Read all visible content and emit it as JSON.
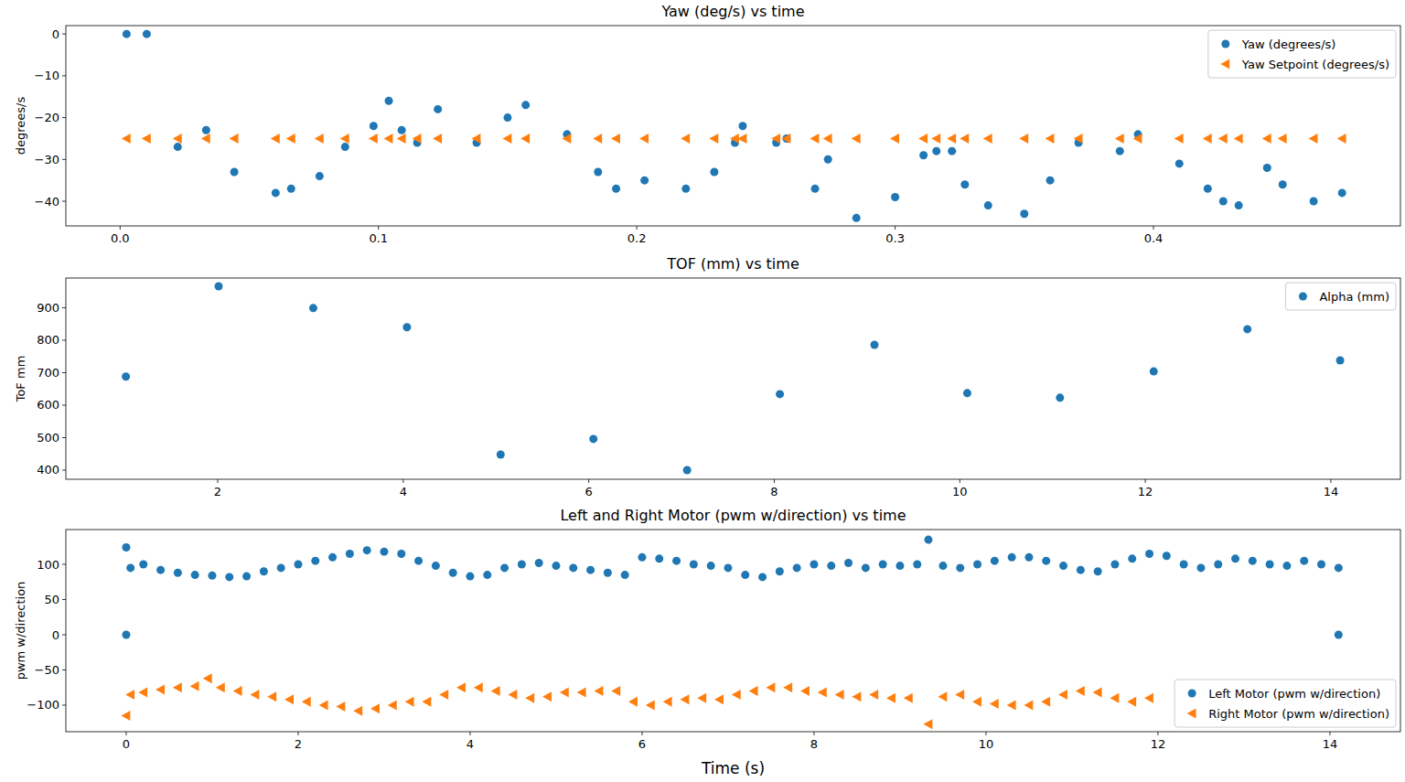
{
  "chart_data": [
    {
      "type": "scatter",
      "title": "Yaw (deg/s) vs time",
      "ylabel": "degrees/s",
      "xlim": [
        -0.021,
        0.4956
      ],
      "ylim": [
        -45.9,
        2.0
      ],
      "xticks": [
        {
          "value": 0,
          "label": "0.0"
        },
        0.1,
        0.2,
        0.3,
        0.4
      ],
      "yticks": [
        0,
        {
          "value": -10,
          "label": "−10"
        },
        {
          "value": -20,
          "label": "−20"
        },
        {
          "value": -30,
          "label": "−30"
        },
        {
          "value": -40,
          "label": "−40"
        }
      ],
      "grid": false,
      "legend": "upper right",
      "series": [
        {
          "name": "Yaw (degrees/s)",
          "color": "#1f77b4",
          "marker": "circle",
          "x": [
            0.0025,
            0.0103,
            0.0223,
            0.0333,
            0.0442,
            0.0602,
            0.0662,
            0.0772,
            0.0871,
            0.0981,
            0.104,
            0.109,
            0.115,
            0.123,
            0.138,
            0.15,
            0.157,
            0.173,
            0.185,
            0.192,
            0.203,
            0.219,
            0.23,
            0.238,
            0.241,
            0.254,
            0.258,
            0.269,
            0.274,
            0.285,
            0.3,
            0.311,
            0.316,
            0.322,
            0.327,
            0.336,
            0.35,
            0.36,
            0.371,
            0.387,
            0.394,
            0.41,
            0.421,
            0.427,
            0.433,
            0.444,
            0.45,
            0.462,
            0.473
          ],
          "values": [
            0,
            0,
            -27,
            -23,
            -33,
            -38,
            -37,
            -34,
            -27,
            -22,
            -16,
            -23,
            -26,
            -18,
            -26,
            -20,
            -17,
            -24,
            -33,
            -37,
            -35,
            -37,
            -33,
            -26,
            -22,
            -26,
            -25,
            -37,
            -30,
            -44,
            -39,
            -29,
            -28,
            -28,
            -36,
            -41,
            -43,
            -35,
            -26,
            -28,
            -24,
            -31,
            -37,
            -40,
            -41,
            -32,
            -36,
            -40,
            -38
          ]
        },
        {
          "name": "Yaw Setpoint (degrees/s)",
          "color": "#ff7f0e",
          "marker": "triangle-left",
          "x": [
            0.0025,
            0.0103,
            0.0223,
            0.0333,
            0.0442,
            0.0602,
            0.0662,
            0.0772,
            0.0871,
            0.0981,
            0.104,
            0.109,
            0.115,
            0.123,
            0.138,
            0.15,
            0.157,
            0.173,
            0.185,
            0.192,
            0.203,
            0.219,
            0.23,
            0.238,
            0.241,
            0.254,
            0.258,
            0.269,
            0.274,
            0.285,
            0.3,
            0.311,
            0.316,
            0.322,
            0.327,
            0.336,
            0.35,
            0.36,
            0.371,
            0.387,
            0.394,
            0.41,
            0.421,
            0.427,
            0.433,
            0.444,
            0.45,
            0.462,
            0.473
          ],
          "values": [
            -25,
            -25,
            -25,
            -25,
            -25,
            -25,
            -25,
            -25,
            -25,
            -25,
            -25,
            -25,
            -25,
            -25,
            -25,
            -25,
            -25,
            -25,
            -25,
            -25,
            -25,
            -25,
            -25,
            -25,
            -25,
            -25,
            -25,
            -25,
            -25,
            -25,
            -25,
            -25,
            -25,
            -25,
            -25,
            -25,
            -25,
            -25,
            -25,
            -25,
            -25,
            -25,
            -25,
            -25,
            -25,
            -25,
            -25,
            -25,
            -25
          ]
        }
      ]
    },
    {
      "type": "scatter",
      "title": "TOF (mm) vs time",
      "ylabel": "ToF mm",
      "xlim": [
        0.363,
        14.75
      ],
      "ylim": [
        371.8,
        991.5
      ],
      "xticks": [
        2,
        4,
        6,
        8,
        10,
        12,
        14
      ],
      "yticks": [
        400,
        500,
        600,
        700,
        800,
        900
      ],
      "grid": false,
      "legend": "upper right",
      "series": [
        {
          "name": "Alpha (mm)",
          "color": "#1f77b4",
          "marker": "circle",
          "x": [
            1.01,
            2.01,
            3.03,
            4.04,
            5.05,
            6.05,
            7.06,
            8.06,
            9.08,
            10.08,
            11.08,
            12.09,
            13.1,
            14.1
          ],
          "values": [
            688,
            966,
            899,
            840,
            448,
            496,
            400,
            634,
            786,
            637,
            623,
            704,
            834,
            738
          ]
        }
      ]
    },
    {
      "type": "scatter",
      "title": "Left and Right Motor (pwm w/direction) vs time",
      "ylabel": "pwm w/direction",
      "xlabel": "Time (s)",
      "xlim": [
        -0.702,
        14.82
      ],
      "ylim": [
        -137.7,
        149.4
      ],
      "xticks": [
        0,
        2,
        4,
        6,
        8,
        10,
        12,
        14
      ],
      "yticks": [
        {
          "value": -100,
          "label": "−100"
        },
        {
          "value": -50,
          "label": "−50"
        },
        0,
        50,
        100
      ],
      "grid": false,
      "legend": "lower right",
      "series": [
        {
          "name": "Left Motor (pwm w/direction)",
          "color": "#1f77b4",
          "marker": "circle",
          "x": [
            0.0,
            0.0,
            0.05,
            0.2,
            0.4,
            0.6,
            0.8,
            1.0,
            1.2,
            1.4,
            1.6,
            1.8,
            2.0,
            2.2,
            2.4,
            2.6,
            2.8,
            3.0,
            3.2,
            3.4,
            3.6,
            3.8,
            4.0,
            4.2,
            4.4,
            4.6,
            4.8,
            5.0,
            5.2,
            5.4,
            5.6,
            5.8,
            6.0,
            6.2,
            6.4,
            6.6,
            6.8,
            7.0,
            7.2,
            7.4,
            7.6,
            7.8,
            8.0,
            8.2,
            8.4,
            8.6,
            8.8,
            9.0,
            9.2,
            9.33,
            9.5,
            9.7,
            9.9,
            10.1,
            10.3,
            10.5,
            10.7,
            10.9,
            11.1,
            11.3,
            11.5,
            11.7,
            11.9,
            12.1,
            12.3,
            12.5,
            12.7,
            12.9,
            13.1,
            13.3,
            13.5,
            13.7,
            13.9,
            14.1,
            14.1
          ],
          "values": [
            0,
            124,
            95,
            100,
            92,
            88,
            85,
            84,
            82,
            83,
            90,
            95,
            100,
            105,
            110,
            115,
            120,
            118,
            115,
            105,
            98,
            88,
            83,
            85,
            95,
            100,
            102,
            98,
            95,
            92,
            88,
            85,
            110,
            108,
            105,
            100,
            98,
            95,
            85,
            82,
            90,
            95,
            100,
            98,
            102,
            95,
            100,
            98,
            100,
            135,
            98,
            95,
            100,
            105,
            110,
            110,
            105,
            98,
            92,
            90,
            100,
            108,
            115,
            112,
            100,
            95,
            100,
            108,
            105,
            100,
            98,
            105,
            100,
            95,
            0
          ]
        },
        {
          "name": "Right Motor (pwm w/direction)",
          "color": "#ff7f0e",
          "marker": "triangle-left",
          "x": [
            0.0,
            0.05,
            0.2,
            0.4,
            0.6,
            0.8,
            0.95,
            1.1,
            1.3,
            1.5,
            1.7,
            1.9,
            2.1,
            2.3,
            2.5,
            2.7,
            2.9,
            3.1,
            3.3,
            3.5,
            3.7,
            3.9,
            4.1,
            4.3,
            4.5,
            4.7,
            4.9,
            5.1,
            5.3,
            5.5,
            5.7,
            5.9,
            6.1,
            6.3,
            6.5,
            6.7,
            6.9,
            7.1,
            7.3,
            7.5,
            7.7,
            7.9,
            8.1,
            8.3,
            8.5,
            8.7,
            8.9,
            9.1,
            9.33,
            9.5,
            9.7,
            9.9,
            10.1,
            10.3,
            10.5,
            10.7,
            10.9,
            11.1,
            11.3,
            11.5,
            11.7,
            11.9
          ],
          "values": [
            -115,
            -85,
            -82,
            -78,
            -75,
            -73,
            -62,
            -75,
            -80,
            -85,
            -88,
            -92,
            -95,
            -100,
            -102,
            -108,
            -105,
            -100,
            -95,
            -95,
            -85,
            -75,
            -75,
            -80,
            -85,
            -90,
            -88,
            -82,
            -82,
            -80,
            -80,
            -95,
            -100,
            -95,
            -92,
            -90,
            -92,
            -85,
            -80,
            -75,
            -75,
            -80,
            -82,
            -85,
            -88,
            -85,
            -90,
            -90,
            -127,
            -88,
            -85,
            -95,
            -98,
            -100,
            -100,
            -95,
            -85,
            -80,
            -82,
            -90,
            -95,
            -90
          ]
        }
      ]
    }
  ]
}
